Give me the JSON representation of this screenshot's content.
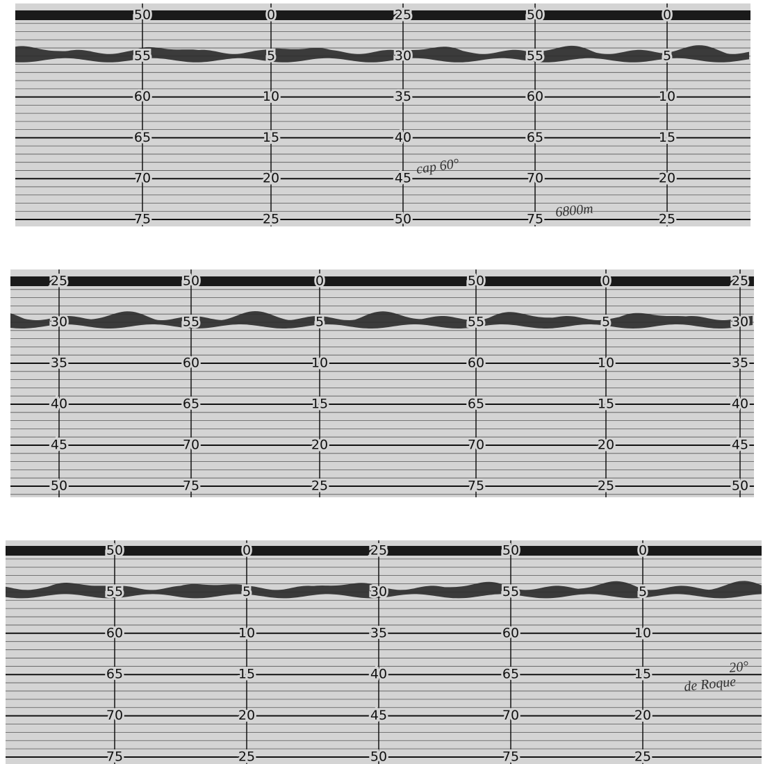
{
  "strips": [
    {
      "columns": [
        {
          "labels": [
            "50",
            "55",
            "60",
            "65",
            "70",
            "75"
          ]
        },
        {
          "labels": [
            "0",
            "5",
            "10",
            "15",
            "20",
            "25"
          ]
        },
        {
          "labels": [
            "25",
            "30",
            "35",
            "40",
            "45",
            "50"
          ]
        },
        {
          "labels": [
            "50",
            "55",
            "60",
            "65",
            "70",
            "75"
          ]
        },
        {
          "labels": [
            "0",
            "5",
            "10",
            "15",
            "20",
            "25"
          ]
        }
      ],
      "annotations": [
        "cap 60°",
        "6800m"
      ]
    },
    {
      "columns": [
        {
          "labels": [
            "25",
            "30",
            "35",
            "40",
            "45",
            "50"
          ]
        },
        {
          "labels": [
            "50",
            "55",
            "60",
            "65",
            "70",
            "75"
          ]
        },
        {
          "labels": [
            "0",
            "5",
            "10",
            "15",
            "20",
            "25"
          ]
        },
        {
          "labels": [
            "50",
            "55",
            "60",
            "65",
            "70",
            "75"
          ]
        },
        {
          "labels": [
            "0",
            "5",
            "10",
            "15",
            "20",
            "25"
          ]
        },
        {
          "labels": [
            "25",
            "30",
            "35",
            "40",
            "45",
            "50"
          ]
        }
      ],
      "annotations": []
    },
    {
      "columns": [
        {
          "labels": [
            "50",
            "55",
            "60",
            "65",
            "70",
            "75"
          ]
        },
        {
          "labels": [
            "0",
            "5",
            "10",
            "15",
            "20",
            "25"
          ]
        },
        {
          "labels": [
            "25",
            "30",
            "35",
            "40",
            "45",
            "50"
          ]
        },
        {
          "labels": [
            "50",
            "55",
            "60",
            "65",
            "70",
            "75"
          ]
        },
        {
          "labels": [
            "0",
            "5",
            "10",
            "15",
            "20",
            "25"
          ]
        }
      ],
      "annotations": [
        "20°",
        "de Roque"
      ]
    }
  ]
}
